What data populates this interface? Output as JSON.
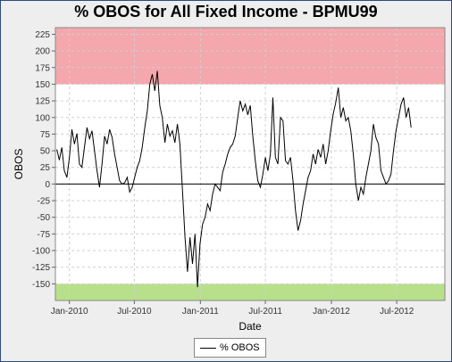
{
  "title": "% OBOS for All Fixed Income - BPMU99",
  "colors": {
    "overbought": "#f4a7ad",
    "oversold": "#b8e08a",
    "line": "#000000",
    "grid": "#d0d0d0"
  },
  "chart_data": {
    "type": "line",
    "title": "% OBOS for All Fixed Income - BPMU99",
    "xlabel": "Date",
    "ylabel": "OBOS",
    "ylim": [
      -175,
      235
    ],
    "yticks": [
      225,
      200,
      175,
      150,
      125,
      100,
      75,
      50,
      25,
      0,
      -25,
      -50,
      -75,
      -100,
      -125,
      -150
    ],
    "xlim": [
      "2009-11-23",
      "2012-11-12"
    ],
    "xticks": [
      {
        "label": "Jan-2010",
        "date": "2010-01-01"
      },
      {
        "label": "Jul-2010",
        "date": "2010-07-01"
      },
      {
        "label": "Jan-2011",
        "date": "2011-01-01"
      },
      {
        "label": "Jul-2011",
        "date": "2011-07-01"
      },
      {
        "label": "Jan-2012",
        "date": "2012-01-01"
      },
      {
        "label": "Jul-2012",
        "date": "2012-07-01"
      }
    ],
    "bands": [
      {
        "from": 150,
        "to": 235,
        "color": "#f4a7ad"
      },
      {
        "from": -175,
        "to": -150,
        "color": "#b8e08a"
      }
    ],
    "grid": true,
    "legend_position": "bottom",
    "series": [
      {
        "name": "% OBOS",
        "points": [
          [
            "2009-11-27",
            52
          ],
          [
            "2009-12-04",
            36
          ],
          [
            "2009-12-11",
            55
          ],
          [
            "2009-12-18",
            20
          ],
          [
            "2009-12-25",
            10
          ],
          [
            "2010-01-01",
            40
          ],
          [
            "2010-01-08",
            82
          ],
          [
            "2010-01-15",
            60
          ],
          [
            "2010-01-22",
            76
          ],
          [
            "2010-01-29",
            30
          ],
          [
            "2010-02-05",
            25
          ],
          [
            "2010-02-12",
            55
          ],
          [
            "2010-02-19",
            85
          ],
          [
            "2010-02-26",
            68
          ],
          [
            "2010-03-05",
            80
          ],
          [
            "2010-03-12",
            50
          ],
          [
            "2010-03-19",
            20
          ],
          [
            "2010-03-26",
            -5
          ],
          [
            "2010-04-02",
            30
          ],
          [
            "2010-04-09",
            72
          ],
          [
            "2010-04-16",
            60
          ],
          [
            "2010-04-23",
            82
          ],
          [
            "2010-04-30",
            70
          ],
          [
            "2010-05-07",
            45
          ],
          [
            "2010-05-14",
            25
          ],
          [
            "2010-05-21",
            5
          ],
          [
            "2010-05-28",
            0
          ],
          [
            "2010-06-04",
            2
          ],
          [
            "2010-06-11",
            10
          ],
          [
            "2010-06-18",
            -12
          ],
          [
            "2010-06-25",
            -5
          ],
          [
            "2010-07-02",
            10
          ],
          [
            "2010-07-09",
            25
          ],
          [
            "2010-07-16",
            35
          ],
          [
            "2010-07-23",
            55
          ],
          [
            "2010-07-30",
            85
          ],
          [
            "2010-08-06",
            110
          ],
          [
            "2010-08-13",
            150
          ],
          [
            "2010-08-20",
            165
          ],
          [
            "2010-08-27",
            140
          ],
          [
            "2010-09-03",
            170
          ],
          [
            "2010-09-10",
            118
          ],
          [
            "2010-09-17",
            100
          ],
          [
            "2010-09-24",
            62
          ],
          [
            "2010-10-01",
            90
          ],
          [
            "2010-10-08",
            72
          ],
          [
            "2010-10-15",
            80
          ],
          [
            "2010-10-22",
            62
          ],
          [
            "2010-10-29",
            90
          ],
          [
            "2010-11-05",
            60
          ],
          [
            "2010-11-12",
            -10
          ],
          [
            "2010-11-19",
            -80
          ],
          [
            "2010-11-26",
            -132
          ],
          [
            "2010-12-03",
            -80
          ],
          [
            "2010-12-10",
            -120
          ],
          [
            "2010-12-17",
            -75
          ],
          [
            "2010-12-24",
            -155
          ],
          [
            "2010-12-31",
            -90
          ],
          [
            "2011-01-07",
            -60
          ],
          [
            "2011-01-14",
            -50
          ],
          [
            "2011-01-21",
            -30
          ],
          [
            "2011-01-28",
            -40
          ],
          [
            "2011-02-04",
            -15
          ],
          [
            "2011-02-11",
            0
          ],
          [
            "2011-02-18",
            -5
          ],
          [
            "2011-02-25",
            -10
          ],
          [
            "2011-03-04",
            18
          ],
          [
            "2011-03-11",
            30
          ],
          [
            "2011-03-18",
            45
          ],
          [
            "2011-03-25",
            55
          ],
          [
            "2011-04-01",
            60
          ],
          [
            "2011-04-08",
            72
          ],
          [
            "2011-04-15",
            100
          ],
          [
            "2011-04-22",
            125
          ],
          [
            "2011-04-29",
            110
          ],
          [
            "2011-05-06",
            120
          ],
          [
            "2011-05-13",
            104
          ],
          [
            "2011-05-20",
            118
          ],
          [
            "2011-05-27",
            72
          ],
          [
            "2011-06-03",
            35
          ],
          [
            "2011-06-10",
            5
          ],
          [
            "2011-06-17",
            -5
          ],
          [
            "2011-06-24",
            15
          ],
          [
            "2011-07-01",
            40
          ],
          [
            "2011-07-08",
            20
          ],
          [
            "2011-07-15",
            45
          ],
          [
            "2011-07-22",
            130
          ],
          [
            "2011-07-29",
            40
          ],
          [
            "2011-08-05",
            30
          ],
          [
            "2011-08-12",
            100
          ],
          [
            "2011-08-19",
            95
          ],
          [
            "2011-08-26",
            35
          ],
          [
            "2011-09-02",
            30
          ],
          [
            "2011-09-09",
            40
          ],
          [
            "2011-09-16",
            5
          ],
          [
            "2011-09-23",
            -40
          ],
          [
            "2011-09-30",
            -70
          ],
          [
            "2011-10-07",
            -55
          ],
          [
            "2011-10-14",
            -30
          ],
          [
            "2011-10-21",
            -10
          ],
          [
            "2011-10-28",
            10
          ],
          [
            "2011-11-04",
            20
          ],
          [
            "2011-11-11",
            45
          ],
          [
            "2011-11-18",
            30
          ],
          [
            "2011-11-25",
            52
          ],
          [
            "2011-12-02",
            40
          ],
          [
            "2011-12-09",
            60
          ],
          [
            "2011-12-16",
            30
          ],
          [
            "2011-12-23",
            50
          ],
          [
            "2011-12-30",
            80
          ],
          [
            "2012-01-06",
            105
          ],
          [
            "2012-01-13",
            122
          ],
          [
            "2012-01-20",
            145
          ],
          [
            "2012-01-27",
            100
          ],
          [
            "2012-02-03",
            115
          ],
          [
            "2012-02-10",
            95
          ],
          [
            "2012-02-17",
            100
          ],
          [
            "2012-02-24",
            80
          ],
          [
            "2012-03-02",
            45
          ],
          [
            "2012-03-09",
            0
          ],
          [
            "2012-03-16",
            -25
          ],
          [
            "2012-03-23",
            -5
          ],
          [
            "2012-03-30",
            -15
          ],
          [
            "2012-04-06",
            10
          ],
          [
            "2012-04-13",
            30
          ],
          [
            "2012-04-20",
            50
          ],
          [
            "2012-04-27",
            90
          ],
          [
            "2012-05-04",
            70
          ],
          [
            "2012-05-11",
            60
          ],
          [
            "2012-05-18",
            20
          ],
          [
            "2012-05-25",
            10
          ],
          [
            "2012-06-01",
            0
          ],
          [
            "2012-06-08",
            5
          ],
          [
            "2012-06-15",
            15
          ],
          [
            "2012-06-22",
            50
          ],
          [
            "2012-06-29",
            80
          ],
          [
            "2012-07-06",
            100
          ],
          [
            "2012-07-13",
            120
          ],
          [
            "2012-07-20",
            130
          ],
          [
            "2012-07-27",
            100
          ],
          [
            "2012-08-03",
            115
          ],
          [
            "2012-08-10",
            85
          ]
        ]
      }
    ]
  }
}
